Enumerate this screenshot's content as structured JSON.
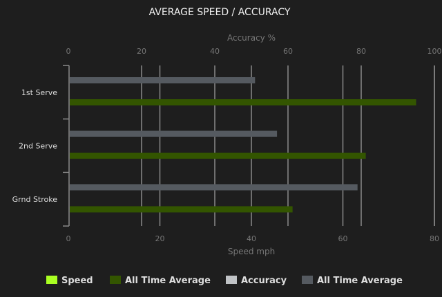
{
  "chart_data": {
    "type": "bar",
    "orientation": "horizontal",
    "title": "AVERAGE SPEED / ACCURACY",
    "categories": [
      "1st Serve",
      "2nd Serve",
      "Grnd Stroke"
    ],
    "top_axis": {
      "label": "Accuracy %",
      "range": [
        0,
        100
      ],
      "ticks": [
        0,
        20,
        40,
        60,
        80,
        100
      ]
    },
    "bottom_axis": {
      "label": "Speed mph",
      "range": [
        0,
        80
      ],
      "ticks": [
        0,
        20,
        40,
        60,
        80
      ]
    },
    "grid": true,
    "legend_position": "bottom",
    "series": [
      {
        "name": "Speed",
        "axis": "bottom",
        "color": "#aaff22",
        "values": [
          null,
          null,
          null
        ]
      },
      {
        "name": "All Time Average",
        "axis": "bottom",
        "color": "#335500",
        "values": [
          76,
          65,
          49
        ]
      },
      {
        "name": "Accuracy",
        "axis": "top",
        "color": "#c0c3c6",
        "values": [
          null,
          null,
          null
        ]
      },
      {
        "name": "All Time Average",
        "axis": "top",
        "color": "#555a60",
        "values": [
          51,
          57,
          79
        ]
      }
    ]
  }
}
